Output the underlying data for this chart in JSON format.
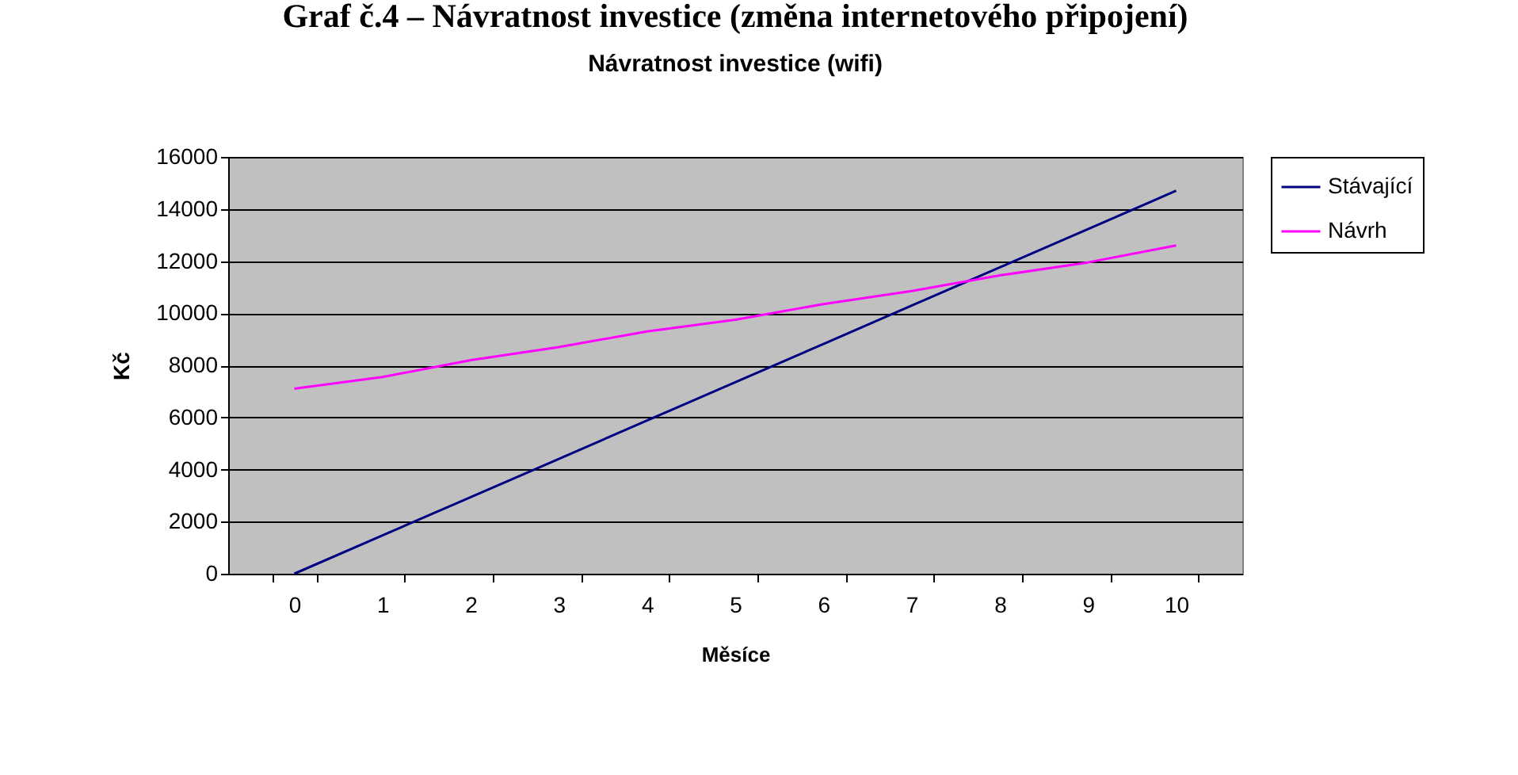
{
  "chart_data": {
    "type": "line",
    "title": "Graf č.4 – Návratnost investice (změna internetového připojení)",
    "subtitle": "Návratnost investice (wifi)",
    "xlabel": "Měsíce",
    "ylabel": "Kč",
    "categories": [
      "0",
      "1",
      "2",
      "3",
      "4",
      "5",
      "6",
      "7",
      "8",
      "9",
      "10"
    ],
    "series": [
      {
        "name": "Stávající",
        "color": "#000080",
        "values": [
          0,
          1470,
          2940,
          4410,
          5880,
          7350,
          8820,
          10290,
          11760,
          13230,
          14700
        ]
      },
      {
        "name": "Návrh",
        "color": "#ff00ff",
        "values": [
          7100,
          7550,
          8200,
          8700,
          9300,
          9750,
          10350,
          10850,
          11450,
          11950,
          12600
        ]
      }
    ],
    "ylim": [
      0,
      16000
    ],
    "yticks": [
      0,
      2000,
      4000,
      6000,
      8000,
      10000,
      12000,
      14000,
      16000
    ],
    "grid": "y",
    "legend": "right",
    "marker": "none",
    "line_style": "solid"
  }
}
